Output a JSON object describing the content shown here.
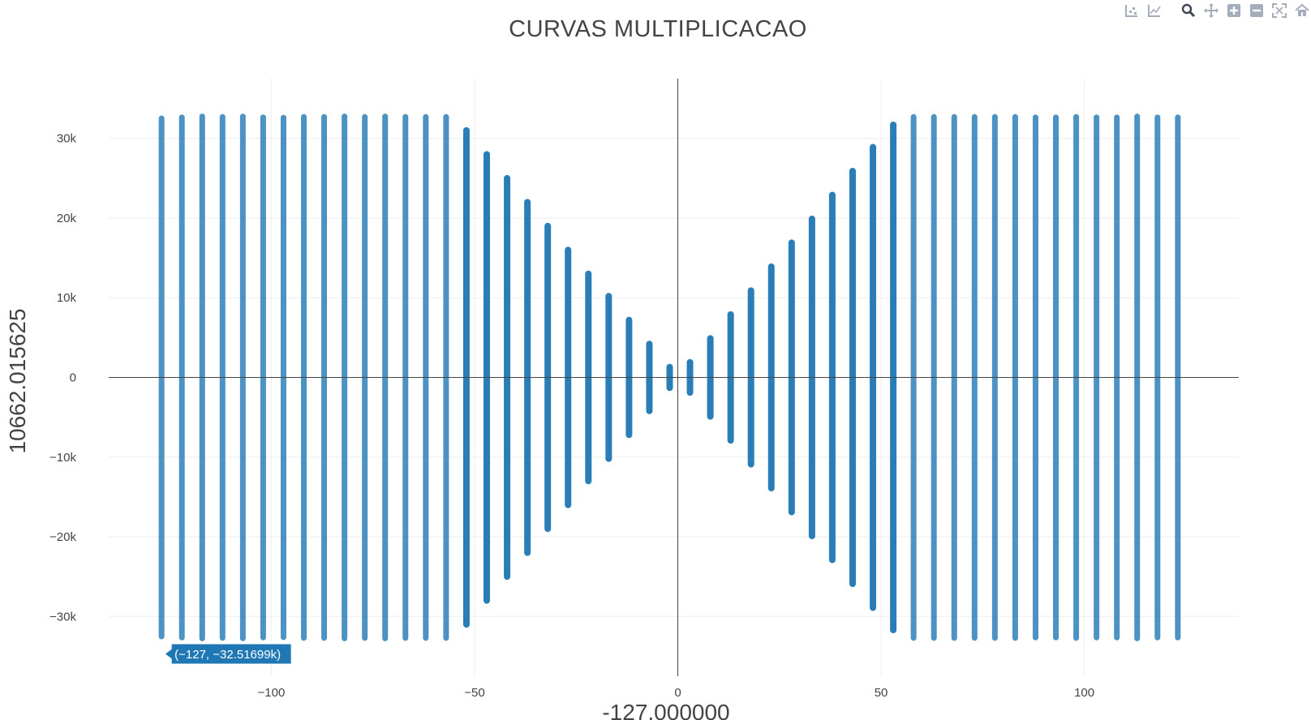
{
  "chart_data": {
    "type": "scatter",
    "title": "CURVAS MULTIPLICACAO",
    "xlabel": "-127.000000",
    "ylabel": "10662.015625",
    "xlim": [
      -140,
      138
    ],
    "ylim": [
      -37500,
      37500
    ],
    "grid": true,
    "x_ticks": [
      {
        "value": -100,
        "label": "−100"
      },
      {
        "value": -50,
        "label": "−50"
      },
      {
        "value": 0,
        "label": "0"
      },
      {
        "value": 50,
        "label": "50"
      },
      {
        "value": 100,
        "label": "100"
      }
    ],
    "y_ticks": [
      {
        "value": 30000,
        "label": "30k"
      },
      {
        "value": 20000,
        "label": "20k"
      },
      {
        "value": 10000,
        "label": "10k"
      },
      {
        "value": 0,
        "label": "0"
      },
      {
        "value": -10000,
        "label": "−10k"
      },
      {
        "value": -20000,
        "label": "−20k"
      },
      {
        "value": -30000,
        "label": "−30k"
      }
    ],
    "series": [
      {
        "values": [
          {
            "x": -127,
            "y_min": -32517,
            "y_max": 32517
          },
          {
            "x": -122,
            "y_min": -32640,
            "y_max": 32640
          },
          {
            "x": -117,
            "y_min": -32760,
            "y_max": 32760
          },
          {
            "x": -112,
            "y_min": -32700,
            "y_max": 32700
          },
          {
            "x": -107,
            "y_min": -32740,
            "y_max": 32740
          },
          {
            "x": -102,
            "y_min": -32640,
            "y_max": 32640
          },
          {
            "x": -97,
            "y_min": -32600,
            "y_max": 32600
          },
          {
            "x": -92,
            "y_min": -32700,
            "y_max": 32700
          },
          {
            "x": -87,
            "y_min": -32700,
            "y_max": 32700
          },
          {
            "x": -82,
            "y_min": -32760,
            "y_max": 32760
          },
          {
            "x": -77,
            "y_min": -32700,
            "y_max": 32700
          },
          {
            "x": -72,
            "y_min": -32760,
            "y_max": 32760
          },
          {
            "x": -67,
            "y_min": -32700,
            "y_max": 32700
          },
          {
            "x": -62,
            "y_min": -32700,
            "y_max": 32700
          },
          {
            "x": -57,
            "y_min": -32700,
            "y_max": 32700
          },
          {
            "x": -52,
            "y_min": -31000,
            "y_max": 31000
          },
          {
            "x": -47,
            "y_min": -28000,
            "y_max": 28000
          },
          {
            "x": -42,
            "y_min": -25000,
            "y_max": 25000
          },
          {
            "x": -37,
            "y_min": -22000,
            "y_max": 22000
          },
          {
            "x": -32,
            "y_min": -19000,
            "y_max": 19000
          },
          {
            "x": -27,
            "y_min": -16000,
            "y_max": 16000
          },
          {
            "x": -22,
            "y_min": -13000,
            "y_max": 13000
          },
          {
            "x": -17,
            "y_min": -10200,
            "y_max": 10200
          },
          {
            "x": -12,
            "y_min": -7200,
            "y_max": 7200
          },
          {
            "x": -7,
            "y_min": -4200,
            "y_max": 4200
          },
          {
            "x": -2,
            "y_min": -1300,
            "y_max": 1300
          },
          {
            "x": 3,
            "y_min": -1900,
            "y_max": 1900
          },
          {
            "x": 8,
            "y_min": -4900,
            "y_max": 4900
          },
          {
            "x": 13,
            "y_min": -7900,
            "y_max": 7900
          },
          {
            "x": 18,
            "y_min": -10900,
            "y_max": 10900
          },
          {
            "x": 23,
            "y_min": -13900,
            "y_max": 13900
          },
          {
            "x": 28,
            "y_min": -16900,
            "y_max": 16900
          },
          {
            "x": 33,
            "y_min": -19900,
            "y_max": 19900
          },
          {
            "x": 38,
            "y_min": -22900,
            "y_max": 22900
          },
          {
            "x": 43,
            "y_min": -25900,
            "y_max": 25900
          },
          {
            "x": 48,
            "y_min": -28900,
            "y_max": 28900
          },
          {
            "x": 53,
            "y_min": -31700,
            "y_max": 31700
          },
          {
            "x": 58,
            "y_min": -32700,
            "y_max": 32700
          },
          {
            "x": 63,
            "y_min": -32700,
            "y_max": 32700
          },
          {
            "x": 68,
            "y_min": -32700,
            "y_max": 32700
          },
          {
            "x": 73,
            "y_min": -32700,
            "y_max": 32700
          },
          {
            "x": 78,
            "y_min": -32700,
            "y_max": 32700
          },
          {
            "x": 83,
            "y_min": -32700,
            "y_max": 32700
          },
          {
            "x": 88,
            "y_min": -32640,
            "y_max": 32640
          },
          {
            "x": 93,
            "y_min": -32640,
            "y_max": 32640
          },
          {
            "x": 98,
            "y_min": -32700,
            "y_max": 32700
          },
          {
            "x": 103,
            "y_min": -32640,
            "y_max": 32640
          },
          {
            "x": 108,
            "y_min": -32640,
            "y_max": 32640
          },
          {
            "x": 113,
            "y_min": -32760,
            "y_max": 32760
          },
          {
            "x": 118,
            "y_min": -32640,
            "y_max": 32640
          },
          {
            "x": 123,
            "y_min": -32640,
            "y_max": 32640
          }
        ]
      }
    ],
    "hover": {
      "x": -127,
      "y": -32516.99,
      "label": "(−127, −32.51699k)"
    },
    "colors": {
      "marker": "#1f77b4",
      "hover_bg": "#1f77b4",
      "grid": "#eeeeee",
      "zeroline": "#444444",
      "text": "#444444"
    }
  },
  "modebar": {
    "buttons": [
      "compare-icon",
      "spike-lines-icon",
      "zoom-icon",
      "pan-icon",
      "zoom-in-icon",
      "zoom-out-icon",
      "autoscale-icon",
      "home-icon"
    ]
  }
}
